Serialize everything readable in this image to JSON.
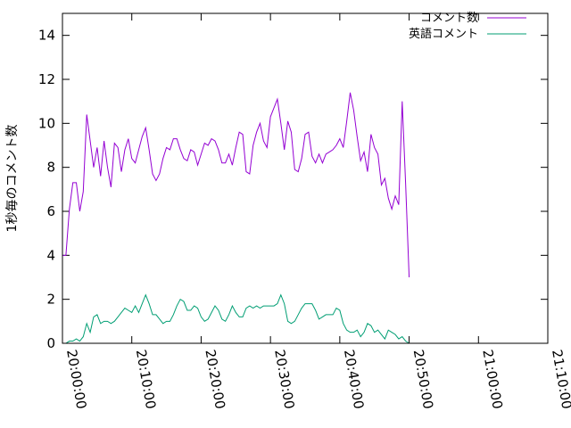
{
  "chart_data": {
    "type": "line",
    "title": "",
    "xlabel": "",
    "ylabel": "1秒毎のコメント数",
    "ylim": [
      0,
      15
    ],
    "yticks": [
      "0",
      "2",
      "4",
      "6",
      "8",
      "10",
      "12",
      "14"
    ],
    "xlim": [
      "20:00:00",
      "21:10:00"
    ],
    "xticks": [
      "20:00:00",
      "20:10:00",
      "20:20:00",
      "20:30:00",
      "20:40:00",
      "20:50:00",
      "21:00:00",
      "21:10:00"
    ],
    "legend_position": "top-right",
    "series": [
      {
        "name": "コメント数",
        "color": "#9400d3",
        "points": [
          [
            "20:00:00",
            4.0
          ],
          [
            "20:00:30",
            4.0
          ],
          [
            "20:01:00",
            6.1
          ],
          [
            "20:01:30",
            7.3
          ],
          [
            "20:02:00",
            7.3
          ],
          [
            "20:02:30",
            6.0
          ],
          [
            "20:03:00",
            6.9
          ],
          [
            "20:03:30",
            10.4
          ],
          [
            "20:04:00",
            9.2
          ],
          [
            "20:04:30",
            8.0
          ],
          [
            "20:05:00",
            8.9
          ],
          [
            "20:05:30",
            7.6
          ],
          [
            "20:06:00",
            9.2
          ],
          [
            "20:06:30",
            8.0
          ],
          [
            "20:07:00",
            7.1
          ],
          [
            "20:07:30",
            9.1
          ],
          [
            "20:08:00",
            8.9
          ],
          [
            "20:08:30",
            7.8
          ],
          [
            "20:09:00",
            8.8
          ],
          [
            "20:09:30",
            9.3
          ],
          [
            "20:10:00",
            8.4
          ],
          [
            "20:10:30",
            8.2
          ],
          [
            "20:11:00",
            8.8
          ],
          [
            "20:11:30",
            9.4
          ],
          [
            "20:12:00",
            9.8
          ],
          [
            "20:12:30",
            8.8
          ],
          [
            "20:13:00",
            7.7
          ],
          [
            "20:13:30",
            7.4
          ],
          [
            "20:14:00",
            7.7
          ],
          [
            "20:14:30",
            8.4
          ],
          [
            "20:15:00",
            8.9
          ],
          [
            "20:15:30",
            8.8
          ],
          [
            "20:16:00",
            9.3
          ],
          [
            "20:16:30",
            9.3
          ],
          [
            "20:17:00",
            8.8
          ],
          [
            "20:17:30",
            8.4
          ],
          [
            "20:18:00",
            8.3
          ],
          [
            "20:18:30",
            8.8
          ],
          [
            "20:19:00",
            8.7
          ],
          [
            "20:19:30",
            8.1
          ],
          [
            "20:20:00",
            8.6
          ],
          [
            "20:20:30",
            9.1
          ],
          [
            "20:21:00",
            9.0
          ],
          [
            "20:21:30",
            9.3
          ],
          [
            "20:22:00",
            9.2
          ],
          [
            "20:22:30",
            8.8
          ],
          [
            "20:23:00",
            8.2
          ],
          [
            "20:23:30",
            8.2
          ],
          [
            "20:24:00",
            8.6
          ],
          [
            "20:24:30",
            8.1
          ],
          [
            "20:25:00",
            8.9
          ],
          [
            "20:25:30",
            9.6
          ],
          [
            "20:26:00",
            9.5
          ],
          [
            "20:26:30",
            7.8
          ],
          [
            "20:27:00",
            7.7
          ],
          [
            "20:27:30",
            9.0
          ],
          [
            "20:28:00",
            9.6
          ],
          [
            "20:28:30",
            10.0
          ],
          [
            "20:29:00",
            9.2
          ],
          [
            "20:29:30",
            8.9
          ],
          [
            "20:30:00",
            10.3
          ],
          [
            "20:30:30",
            10.7
          ],
          [
            "20:31:00",
            11.1
          ],
          [
            "20:31:30",
            10.0
          ],
          [
            "20:32:00",
            8.8
          ],
          [
            "20:32:30",
            10.1
          ],
          [
            "20:33:00",
            9.6
          ],
          [
            "20:33:30",
            7.9
          ],
          [
            "20:34:00",
            7.8
          ],
          [
            "20:34:30",
            8.4
          ],
          [
            "20:35:00",
            9.5
          ],
          [
            "20:35:30",
            9.6
          ],
          [
            "20:36:00",
            8.5
          ],
          [
            "20:36:30",
            8.2
          ],
          [
            "20:37:00",
            8.6
          ],
          [
            "20:37:30",
            8.2
          ],
          [
            "20:38:00",
            8.6
          ],
          [
            "20:38:30",
            8.7
          ],
          [
            "20:39:00",
            8.8
          ],
          [
            "20:39:30",
            9.0
          ],
          [
            "20:40:00",
            9.3
          ],
          [
            "20:40:30",
            8.9
          ],
          [
            "20:41:00",
            10.1
          ],
          [
            "20:41:30",
            11.4
          ],
          [
            "20:42:00",
            10.6
          ],
          [
            "20:42:30",
            9.4
          ],
          [
            "20:43:00",
            8.3
          ],
          [
            "20:43:30",
            8.7
          ],
          [
            "20:44:00",
            7.8
          ],
          [
            "20:44:30",
            9.5
          ],
          [
            "20:45:00",
            8.9
          ],
          [
            "20:45:30",
            8.6
          ],
          [
            "20:46:00",
            7.2
          ],
          [
            "20:46:30",
            7.5
          ],
          [
            "20:47:00",
            6.6
          ],
          [
            "20:47:30",
            6.1
          ],
          [
            "20:48:00",
            6.7
          ],
          [
            "20:48:30",
            6.3
          ],
          [
            "20:49:00",
            11.0
          ],
          [
            "20:49:30",
            7.2
          ],
          [
            "20:50:00",
            3.0
          ]
        ]
      },
      {
        "name": "英語コメント",
        "color": "#009e73",
        "points": [
          [
            "20:00:00",
            0.0
          ],
          [
            "20:00:30",
            0.0
          ],
          [
            "20:01:00",
            0.1
          ],
          [
            "20:01:30",
            0.1
          ],
          [
            "20:02:00",
            0.2
          ],
          [
            "20:02:30",
            0.1
          ],
          [
            "20:03:00",
            0.3
          ],
          [
            "20:03:30",
            0.9
          ],
          [
            "20:04:00",
            0.5
          ],
          [
            "20:04:30",
            1.2
          ],
          [
            "20:05:00",
            1.3
          ],
          [
            "20:05:30",
            0.9
          ],
          [
            "20:06:00",
            1.0
          ],
          [
            "20:06:30",
            1.0
          ],
          [
            "20:07:00",
            0.9
          ],
          [
            "20:07:30",
            1.0
          ],
          [
            "20:08:00",
            1.2
          ],
          [
            "20:08:30",
            1.4
          ],
          [
            "20:09:00",
            1.6
          ],
          [
            "20:09:30",
            1.5
          ],
          [
            "20:10:00",
            1.4
          ],
          [
            "20:10:30",
            1.7
          ],
          [
            "20:11:00",
            1.4
          ],
          [
            "20:11:30",
            1.8
          ],
          [
            "20:12:00",
            2.2
          ],
          [
            "20:12:30",
            1.8
          ],
          [
            "20:13:00",
            1.3
          ],
          [
            "20:13:30",
            1.3
          ],
          [
            "20:14:00",
            1.1
          ],
          [
            "20:14:30",
            0.9
          ],
          [
            "20:15:00",
            1.0
          ],
          [
            "20:15:30",
            1.0
          ],
          [
            "20:16:00",
            1.3
          ],
          [
            "20:16:30",
            1.7
          ],
          [
            "20:17:00",
            2.0
          ],
          [
            "20:17:30",
            1.9
          ],
          [
            "20:18:00",
            1.5
          ],
          [
            "20:18:30",
            1.5
          ],
          [
            "20:19:00",
            1.7
          ],
          [
            "20:19:30",
            1.6
          ],
          [
            "20:20:00",
            1.2
          ],
          [
            "20:20:30",
            1.0
          ],
          [
            "20:21:00",
            1.1
          ],
          [
            "20:21:30",
            1.4
          ],
          [
            "20:22:00",
            1.7
          ],
          [
            "20:22:30",
            1.5
          ],
          [
            "20:23:00",
            1.1
          ],
          [
            "20:23:30",
            1.0
          ],
          [
            "20:24:00",
            1.3
          ],
          [
            "20:24:30",
            1.7
          ],
          [
            "20:25:00",
            1.4
          ],
          [
            "20:25:30",
            1.2
          ],
          [
            "20:26:00",
            1.2
          ],
          [
            "20:26:30",
            1.6
          ],
          [
            "20:27:00",
            1.7
          ],
          [
            "20:27:30",
            1.6
          ],
          [
            "20:28:00",
            1.7
          ],
          [
            "20:28:30",
            1.6
          ],
          [
            "20:29:00",
            1.7
          ],
          [
            "20:29:30",
            1.7
          ],
          [
            "20:30:00",
            1.7
          ],
          [
            "20:30:30",
            1.7
          ],
          [
            "20:31:00",
            1.8
          ],
          [
            "20:31:30",
            2.2
          ],
          [
            "20:32:00",
            1.8
          ],
          [
            "20:32:30",
            1.0
          ],
          [
            "20:33:00",
            0.9
          ],
          [
            "20:33:30",
            1.0
          ],
          [
            "20:34:00",
            1.3
          ],
          [
            "20:34:30",
            1.6
          ],
          [
            "20:35:00",
            1.8
          ],
          [
            "20:35:30",
            1.8
          ],
          [
            "20:36:00",
            1.8
          ],
          [
            "20:36:30",
            1.5
          ],
          [
            "20:37:00",
            1.1
          ],
          [
            "20:37:30",
            1.2
          ],
          [
            "20:38:00",
            1.3
          ],
          [
            "20:38:30",
            1.3
          ],
          [
            "20:39:00",
            1.3
          ],
          [
            "20:39:30",
            1.6
          ],
          [
            "20:40:00",
            1.5
          ],
          [
            "20:40:30",
            0.9
          ],
          [
            "20:41:00",
            0.6
          ],
          [
            "20:41:30",
            0.5
          ],
          [
            "20:42:00",
            0.5
          ],
          [
            "20:42:30",
            0.6
          ],
          [
            "20:43:00",
            0.3
          ],
          [
            "20:43:30",
            0.5
          ],
          [
            "20:44:00",
            0.9
          ],
          [
            "20:44:30",
            0.8
          ],
          [
            "20:45:00",
            0.5
          ],
          [
            "20:45:30",
            0.6
          ],
          [
            "20:46:00",
            0.4
          ],
          [
            "20:46:30",
            0.2
          ],
          [
            "20:47:00",
            0.6
          ],
          [
            "20:47:30",
            0.5
          ],
          [
            "20:48:00",
            0.4
          ],
          [
            "20:48:30",
            0.2
          ],
          [
            "20:49:00",
            0.3
          ],
          [
            "20:49:30",
            0.1
          ],
          [
            "20:50:00",
            0.0
          ]
        ]
      }
    ]
  }
}
